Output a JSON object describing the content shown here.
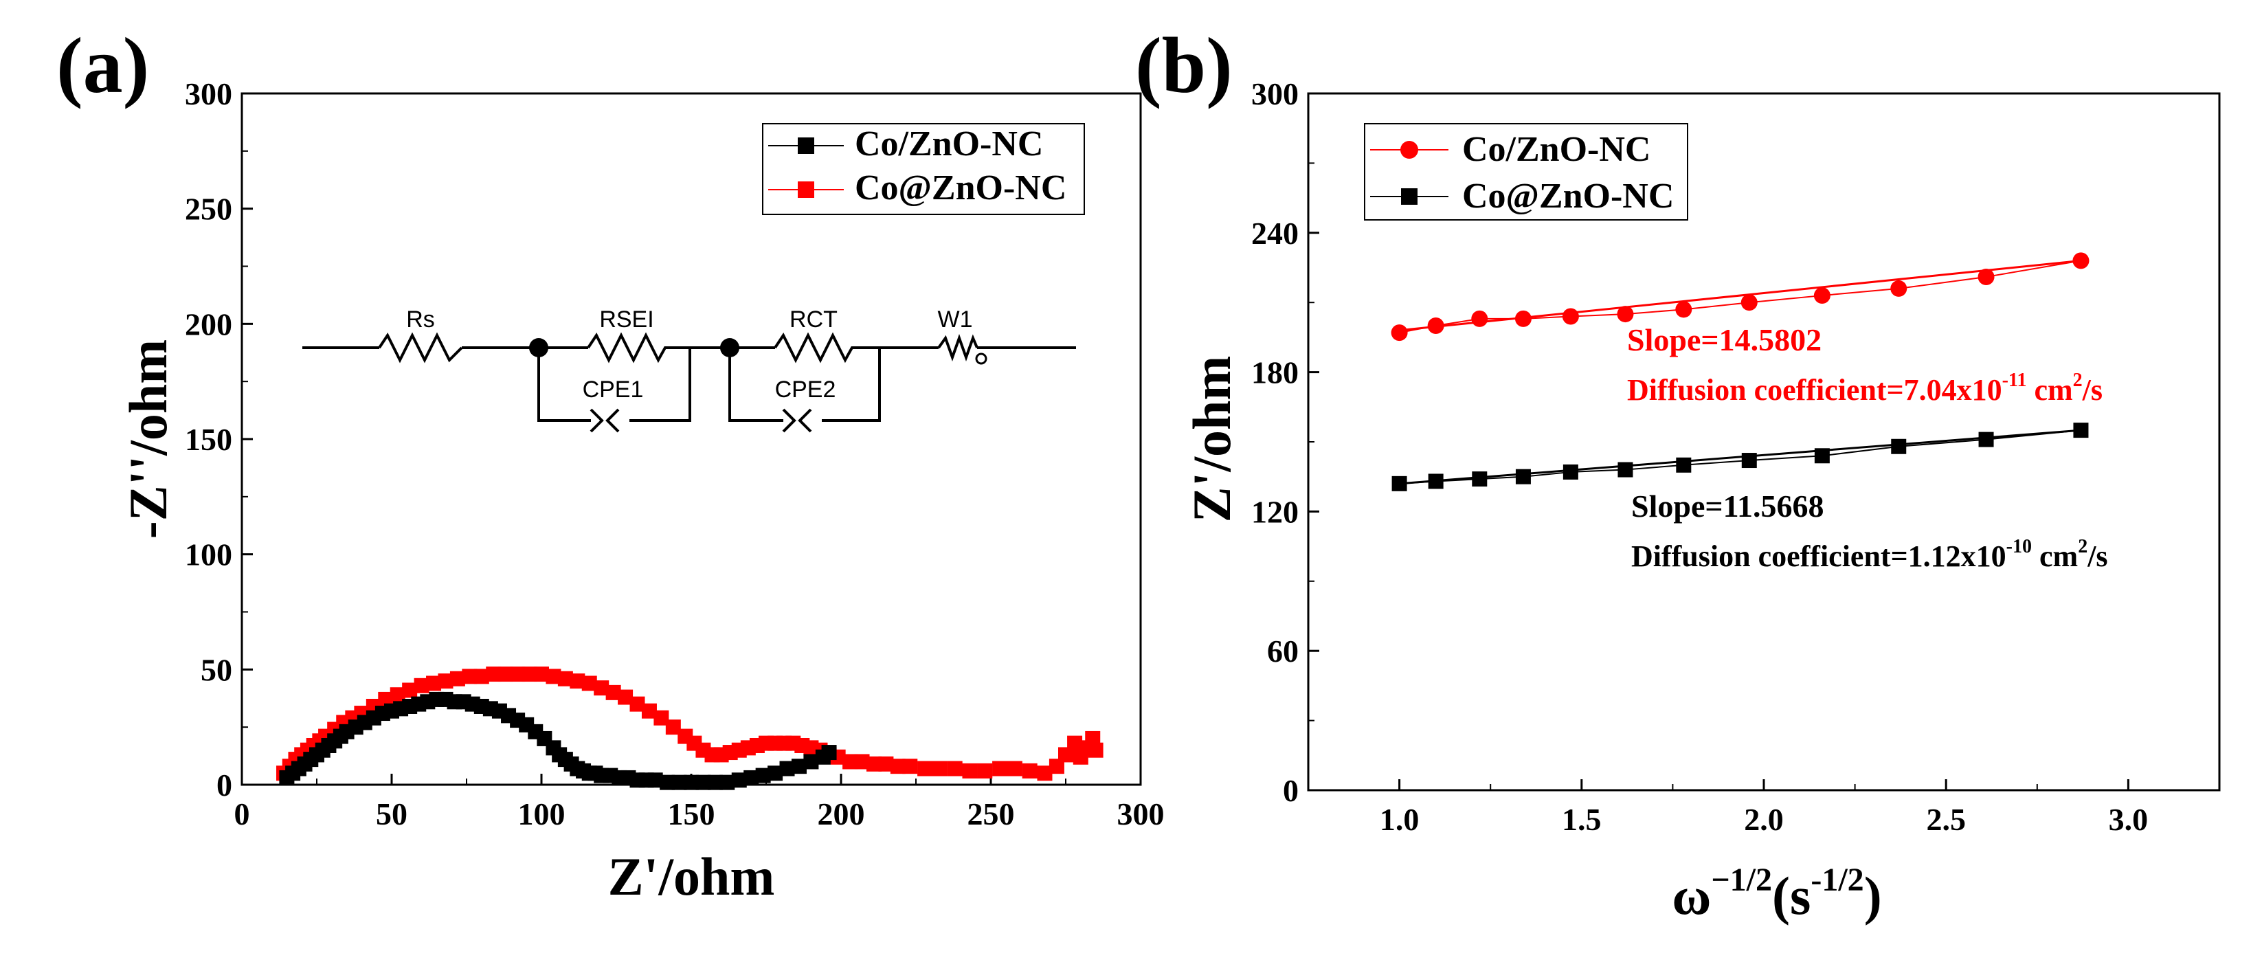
{
  "panel_labels": {
    "a": "(a)",
    "b": "(b)"
  },
  "circuit": {
    "labels": [
      "Rs",
      "RSEI",
      "RCT",
      "W1",
      "CPE1",
      "CPE2"
    ]
  },
  "annotations_b": {
    "red_slope": "Slope=14.5802",
    "red_diff_prefix": "Diffusion coefficient=7.04x10",
    "red_diff_exp": "-11",
    "red_diff_unit": " cm",
    "red_diff_unit_sup": "2",
    "red_diff_tail": "/s",
    "black_slope": "Slope=11.5668",
    "black_diff_prefix": "Diffusion coefficient=1.12x10",
    "black_diff_exp": "-10",
    "black_diff_unit": " cm",
    "black_diff_unit_sup": "2",
    "black_diff_tail": "/s"
  },
  "axis_b_text": {
    "ylabel": "Z'/ohm",
    "xlabel_omega": "ω",
    "xlabel_omega_exp": "−1/2",
    "xlabel_s_open": "(s",
    "xlabel_s_exp": "-1/2",
    "xlabel_s_close": ")"
  },
  "chart_data": [
    {
      "type": "scatter",
      "title": "",
      "xlabel": "Z'/ohm",
      "ylabel": "-Z''/ohm",
      "xlim": [
        0,
        300
      ],
      "ylim": [
        0,
        300
      ],
      "xticks": [
        0,
        50,
        100,
        150,
        200,
        250,
        300
      ],
      "yticks": [
        0,
        50,
        100,
        150,
        200,
        250,
        300
      ],
      "grid": false,
      "legend_position": "top-right",
      "series": [
        {
          "name": "Co/ZnO-NC",
          "color": "#000000",
          "marker": "square",
          "x": [
            15,
            17,
            19,
            21,
            23,
            25,
            27,
            29,
            31,
            33,
            35,
            38,
            41,
            44,
            47,
            50,
            53,
            56,
            59,
            62,
            65,
            68,
            71,
            74,
            77,
            80,
            83,
            86,
            89,
            92,
            95,
            98,
            101,
            104,
            106,
            108,
            110,
            112,
            114,
            116,
            118,
            120,
            123,
            126,
            129,
            132,
            135,
            138,
            142,
            146,
            150,
            154,
            158,
            162,
            166,
            170,
            174,
            178,
            182,
            186,
            190,
            194,
            196
          ],
          "y": [
            3,
            5,
            7,
            9,
            11,
            13,
            15,
            17,
            19,
            21,
            23,
            25,
            27,
            29,
            31,
            32,
            33,
            34,
            35,
            36,
            37,
            37,
            36,
            36,
            35,
            34,
            33,
            32,
            30,
            28,
            26,
            23,
            20,
            16,
            13,
            11,
            9,
            7,
            6,
            5,
            5,
            4,
            4,
            3,
            3,
            2,
            2,
            2,
            1,
            1,
            1,
            1,
            1,
            1,
            2,
            3,
            4,
            5,
            7,
            8,
            10,
            12,
            14
          ]
        },
        {
          "name": "Co@ZnO-NC",
          "color": "#ff0000",
          "marker": "square",
          "x": [
            14,
            16,
            18,
            20,
            22,
            24,
            26,
            28,
            31,
            34,
            37,
            40,
            44,
            48,
            52,
            56,
            60,
            64,
            68,
            72,
            76,
            80,
            84,
            88,
            92,
            96,
            100,
            104,
            108,
            112,
            116,
            120,
            124,
            128,
            132,
            136,
            140,
            144,
            148,
            151,
            154,
            157,
            160,
            163,
            166,
            169,
            172,
            175,
            178,
            181,
            184,
            187,
            190,
            193,
            196,
            199,
            203,
            207,
            211,
            215,
            219,
            223,
            228,
            233,
            238,
            243,
            248,
            253,
            258,
            263,
            268,
            272,
            275,
            278,
            280,
            282,
            284,
            285
          ],
          "y": [
            5,
            8,
            11,
            13,
            15,
            17,
            19,
            21,
            24,
            27,
            29,
            31,
            34,
            37,
            39,
            41,
            43,
            44,
            45,
            46,
            47,
            47,
            48,
            48,
            48,
            48,
            48,
            47,
            46,
            45,
            44,
            42,
            40,
            38,
            35,
            32,
            29,
            25,
            21,
            18,
            15,
            13,
            13,
            14,
            15,
            16,
            17,
            18,
            18,
            18,
            18,
            17,
            16,
            15,
            13,
            12,
            10,
            10,
            9,
            9,
            8,
            8,
            7,
            7,
            7,
            6,
            6,
            7,
            7,
            6,
            5,
            8,
            13,
            18,
            12,
            16,
            20,
            15
          ]
        }
      ]
    },
    {
      "type": "line",
      "title": "",
      "xlabel": "ω^-1/2 (s^-1/2)",
      "ylabel": "Z'/ohm",
      "xlim": [
        0.75,
        3.25
      ],
      "ylim": [
        0,
        300
      ],
      "xticks": [
        1.0,
        1.5,
        2.0,
        2.5,
        3.0
      ],
      "xtick_labels": [
        "1.0",
        "1.5",
        "2.0",
        "2.5",
        "3.0"
      ],
      "yticks": [
        0,
        60,
        120,
        180,
        240,
        300
      ],
      "grid": false,
      "legend_position": "top-left",
      "series": [
        {
          "name": "Co/ZnO-NC",
          "color": "#ff0000",
          "marker": "circle",
          "x": [
            1.0,
            1.1,
            1.22,
            1.34,
            1.47,
            1.62,
            1.78,
            1.96,
            2.16,
            2.37,
            2.61,
            2.87
          ],
          "y": [
            197,
            200,
            203,
            203,
            204,
            205,
            207,
            210,
            213,
            216,
            221,
            228
          ],
          "fit_y": [
            198,
            228
          ]
        },
        {
          "name": "Co@ZnO-NC",
          "color": "#000000",
          "marker": "square",
          "x": [
            1.0,
            1.1,
            1.22,
            1.34,
            1.47,
            1.62,
            1.78,
            1.96,
            2.16,
            2.37,
            2.61,
            2.87
          ],
          "y": [
            132,
            133,
            134,
            135,
            137,
            138,
            140,
            142,
            144,
            148,
            151,
            155
          ],
          "fit_y": [
            132,
            155
          ]
        }
      ]
    }
  ]
}
